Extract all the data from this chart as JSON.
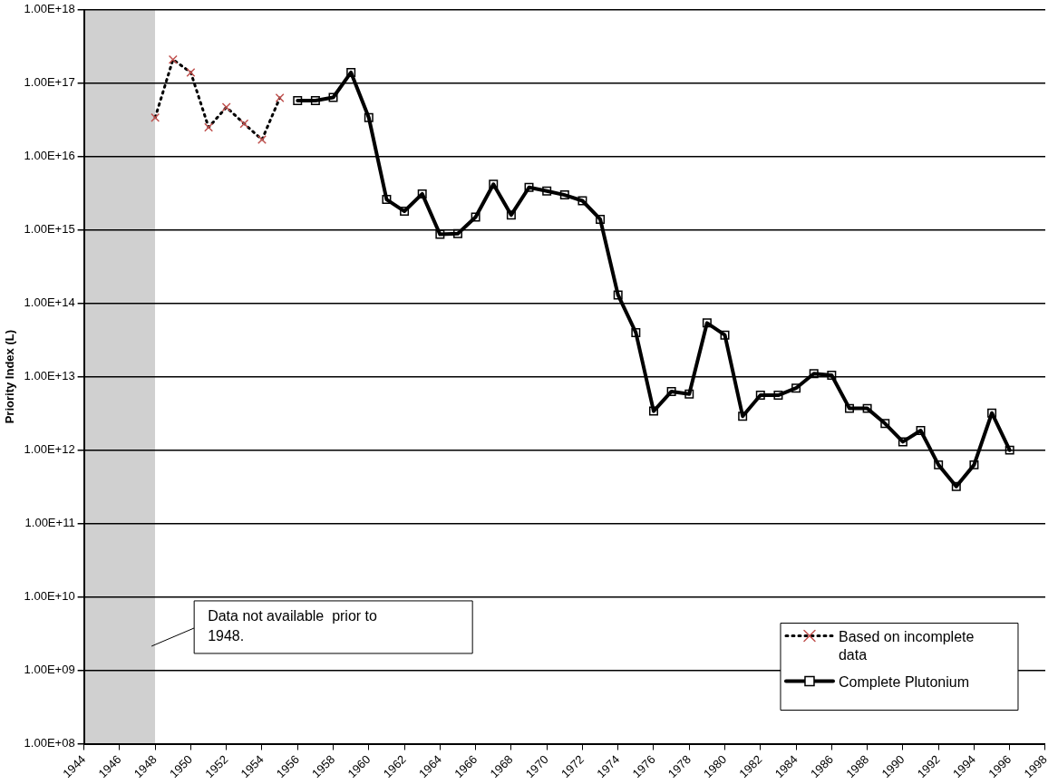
{
  "chart_data": {
    "type": "line",
    "ylabel": "Priority Index (L)",
    "log": "y",
    "grid": "y",
    "legend": "bottom right",
    "xlim": [
      1944,
      1998
    ],
    "xticks": [
      1944,
      1946,
      1948,
      1950,
      1952,
      1954,
      1956,
      1958,
      1960,
      1962,
      1964,
      1966,
      1968,
      1970,
      1972,
      1974,
      1976,
      1978,
      1980,
      1982,
      1984,
      1986,
      1988,
      1990,
      1992,
      1994,
      1996,
      1998
    ],
    "ylim": [
      100000000.0,
      1e+18
    ],
    "yticks": [
      {
        "value": 100000000.0,
        "label": "1.00E+08"
      },
      {
        "value": 1000000000.0,
        "label": "1.00E+09"
      },
      {
        "value": 10000000000.0,
        "label": "1.00E+10"
      },
      {
        "value": 100000000000.0,
        "label": "1.00E+11"
      },
      {
        "value": 1000000000000.0,
        "label": "1.00E+12"
      },
      {
        "value": 10000000000000.0,
        "label": "1.00E+13"
      },
      {
        "value": 100000000000000.0,
        "label": "1.00E+14"
      },
      {
        "value": 1000000000000000.0,
        "label": "1.00E+15"
      },
      {
        "value": 1e+16,
        "label": "1.00E+16"
      },
      {
        "value": 1e+17,
        "label": "1.00E+17"
      },
      {
        "value": 1e+18,
        "label": "1.00E+18"
      }
    ],
    "bands": [
      {
        "axis": "x",
        "from": 1944,
        "to": 1948,
        "label": "Data not available  prior to 1948.",
        "color": "#d0d0d0"
      }
    ],
    "series": [
      {
        "name": "Based on incomplete data",
        "color": "#c0504d",
        "line_style": "dotted",
        "marker": "cross",
        "x": [
          1948,
          1949,
          1950,
          1951,
          1952,
          1953,
          1954,
          1955
        ],
        "values": [
          3.4e+16,
          2.1e+17,
          1.4e+17,
          2.5e+16,
          4.7e+16,
          2.8e+16,
          1.7e+16,
          6.3e+16
        ]
      },
      {
        "name": "Complete Plutonium",
        "color": "#000000",
        "line_style": "solid",
        "marker": "square",
        "x": [
          1956,
          1957,
          1958,
          1959,
          1960,
          1961,
          1962,
          1963,
          1964,
          1965,
          1966,
          1967,
          1968,
          1969,
          1970,
          1971,
          1972,
          1973,
          1974,
          1975,
          1976,
          1977,
          1978,
          1979,
          1980,
          1981,
          1982,
          1983,
          1984,
          1985,
          1986,
          1987,
          1988,
          1989,
          1990,
          1991,
          1992,
          1993,
          1994,
          1995,
          1996
        ],
        "values": [
          5.8e+16,
          5.8e+16,
          6.4e+16,
          1.4e+17,
          3.4e+16,
          2600000000000000.0,
          1800000000000000.0,
          3100000000000000.0,
          870000000000000.0,
          890000000000000.0,
          1500000000000000.0,
          4200000000000000.0,
          1600000000000000.0,
          3800000000000000.0,
          3400000000000000.0,
          3000000000000000.0,
          2500000000000000.0,
          1400000000000000.0,
          130000000000000.0,
          40000000000000.0,
          3400000000000.0,
          6300000000000.0,
          5800000000000.0,
          54000000000000.0,
          37000000000000.0,
          2900000000000.0,
          5600000000000.0,
          5600000000000.0,
          7000000000000.0,
          11000000000000.0,
          10500000000000.0,
          3700000000000.0,
          3700000000000.0,
          2300000000000.0,
          1300000000000.0,
          1850000000000.0,
          630000000000.0,
          320000000000.0,
          630000000000.0,
          3200000000000.0,
          1000000000000.0
        ]
      }
    ]
  }
}
